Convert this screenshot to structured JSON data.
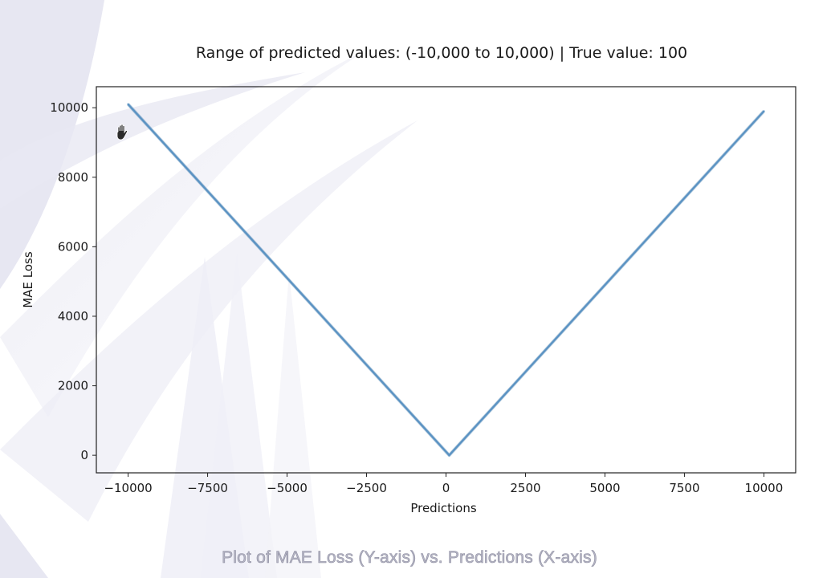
{
  "caption": "Plot of MAE Loss (Y-axis) vs. Predictions (X-axis)",
  "colors": {
    "line": "#5b93c3",
    "axes": "#222222",
    "background_decor": "#dcdcec"
  },
  "icons": {
    "cursor": "hand-grab-icon"
  },
  "chart_data": {
    "type": "line",
    "title": "Range of predicted values: (-10,000 to 10,000) | True value: 100",
    "xlabel": "Predictions",
    "ylabel": "MAE Loss",
    "xlim": [
      -11000,
      11000
    ],
    "ylim": [
      -505,
      10605
    ],
    "xticks": [
      -10000,
      -7500,
      -5000,
      -2500,
      0,
      2500,
      5000,
      7500,
      10000
    ],
    "xtick_labels": [
      "−10000",
      "−7500",
      "−5000",
      "−2500",
      "0",
      "2500",
      "5000",
      "7500",
      "10000"
    ],
    "yticks": [
      0,
      2000,
      4000,
      6000,
      8000,
      10000
    ],
    "ytick_labels": [
      "0",
      "2000",
      "4000",
      "6000",
      "8000",
      "10000"
    ],
    "grid": false,
    "series": [
      {
        "x": [
          -10000,
          100,
          10000
        ],
        "y": [
          10100,
          0,
          9900
        ]
      }
    ]
  }
}
